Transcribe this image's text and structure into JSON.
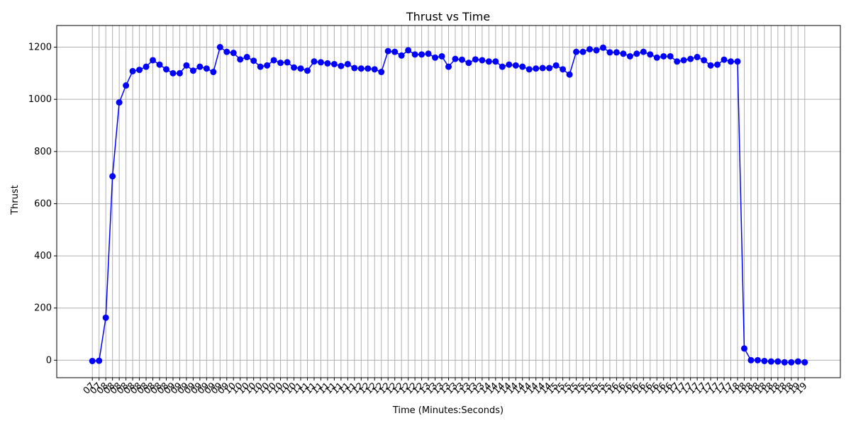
{
  "chart_data": {
    "type": "line",
    "title": "Thrust vs Time",
    "xlabel": "Time (Minutes:Seconds)",
    "ylabel": "Thrust",
    "categories": [
      "07",
      "07",
      "08",
      "08",
      "08",
      "08",
      "08",
      "08",
      "08",
      "08",
      "08",
      "08",
      "09",
      "09",
      "09",
      "09",
      "09",
      "09",
      "09",
      "09",
      "09",
      "10",
      "10",
      "10",
      "10",
      "10",
      "10",
      "10",
      "10",
      "10",
      "10",
      "11",
      "11",
      "11",
      "11",
      "11",
      "11",
      "11",
      "11",
      "11",
      "12",
      "12",
      "12",
      "12",
      "12",
      "12",
      "12",
      "12",
      "12",
      "12",
      "13",
      "13",
      "13",
      "13",
      "13",
      "13",
      "13",
      "13",
      "13",
      "14",
      "14",
      "14",
      "14",
      "14",
      "14",
      "14",
      "14",
      "14",
      "14",
      "15",
      "15",
      "15",
      "15",
      "15",
      "15",
      "15",
      "15",
      "15",
      "16",
      "16",
      "16",
      "16",
      "16",
      "16",
      "16",
      "16",
      "16",
      "17",
      "17",
      "17",
      "17",
      "17",
      "17",
      "17",
      "17",
      "17",
      "18",
      "18",
      "18",
      "18",
      "18",
      "18",
      "18",
      "18",
      "18",
      "19",
      "19"
    ],
    "series": [
      {
        "color": "#0000ff",
        "values": [
          -3,
          -2,
          163,
          705,
          988,
          1053,
          1108,
          1113,
          1125,
          1150,
          1133,
          1115,
          1100,
          1100,
          1130,
          1110,
          1125,
          1118,
          1105,
          1200,
          1182,
          1178,
          1153,
          1162,
          1148,
          1125,
          1130,
          1150,
          1140,
          1142,
          1122,
          1118,
          1110,
          1145,
          1142,
          1138,
          1135,
          1128,
          1135,
          1120,
          1118,
          1118,
          1115,
          1105,
          1185,
          1182,
          1168,
          1188,
          1172,
          1172,
          1175,
          1160,
          1165,
          1125,
          1155,
          1152,
          1140,
          1153,
          1150,
          1145,
          1145,
          1125,
          1133,
          1130,
          1125,
          1115,
          1118,
          1120,
          1120,
          1130,
          1115,
          1095,
          1182,
          1182,
          1192,
          1188,
          1198,
          1180,
          1180,
          1175,
          1165,
          1175,
          1182,
          1172,
          1160,
          1165,
          1165,
          1145,
          1150,
          1155,
          1162,
          1150,
          1130,
          1133,
          1152,
          1145,
          1145,
          45,
          0,
          0,
          -3,
          -5,
          -5,
          -8,
          -8,
          -5,
          -8
        ]
      }
    ],
    "ylim": [
      -67,
      1283
    ],
    "yticks": [
      0,
      200,
      400,
      600,
      800,
      1000,
      1200
    ],
    "grid": true
  }
}
